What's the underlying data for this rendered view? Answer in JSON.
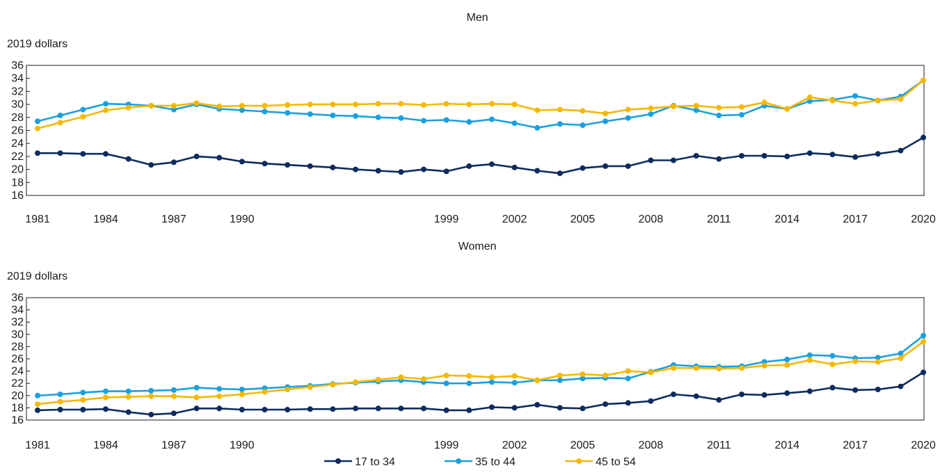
{
  "chart_data": [
    {
      "type": "line",
      "title": "Men",
      "ylabel": "2019 dollars",
      "xlabel": "",
      "ylim": [
        16,
        36
      ],
      "yticks": [
        16,
        18,
        20,
        22,
        24,
        26,
        28,
        30,
        32,
        34,
        36
      ],
      "x": [
        1981,
        1982,
        1983,
        1984,
        1985,
        1986,
        1987,
        1988,
        1989,
        1990,
        1991,
        1992,
        1993,
        1994,
        1995,
        1996,
        1997,
        1998,
        1999,
        2000,
        2001,
        2002,
        2003,
        2004,
        2005,
        2006,
        2007,
        2008,
        2009,
        2010,
        2011,
        2012,
        2013,
        2014,
        2015,
        2016,
        2017,
        2018,
        2019,
        2020
      ],
      "xtick_labels": [
        "1981",
        "1984",
        "1987",
        "1990",
        "1999",
        "2002",
        "2005",
        "2008",
        "2011",
        "2014",
        "2017",
        "2020"
      ],
      "grid": false,
      "series": [
        {
          "name": "17 to 34",
          "color": "#0d2b5c",
          "values": [
            22.5,
            22.5,
            22.4,
            22.4,
            21.6,
            20.7,
            21.1,
            22.0,
            21.8,
            21.2,
            20.9,
            20.7,
            20.5,
            20.3,
            20.0,
            19.8,
            19.6,
            20.0,
            19.7,
            20.5,
            20.8,
            20.3,
            19.8,
            19.4,
            20.2,
            20.5,
            20.5,
            21.4,
            21.4,
            22.1,
            21.6,
            22.1,
            22.1,
            22.0,
            22.5,
            22.3,
            21.9,
            22.4,
            22.9,
            24.9
          ]
        },
        {
          "name": "35 to 44",
          "color": "#1aa0e0",
          "values": [
            27.4,
            28.3,
            29.2,
            30.1,
            30.0,
            29.8,
            29.2,
            30.0,
            29.3,
            29.1,
            28.9,
            28.7,
            28.5,
            28.3,
            28.2,
            28.0,
            27.9,
            27.5,
            27.6,
            27.3,
            27.7,
            27.1,
            26.4,
            27.0,
            26.8,
            27.4,
            27.9,
            28.5,
            29.8,
            29.1,
            28.3,
            28.4,
            29.8,
            29.3,
            30.5,
            30.7,
            31.3,
            30.6,
            31.2,
            33.7
          ]
        },
        {
          "name": "45 to 54",
          "color": "#f5b800",
          "values": [
            26.3,
            27.2,
            28.1,
            29.1,
            29.5,
            29.8,
            29.8,
            30.2,
            29.7,
            29.8,
            29.8,
            29.9,
            30.0,
            30.0,
            30.0,
            30.1,
            30.1,
            29.9,
            30.1,
            30.0,
            30.1,
            30.0,
            29.1,
            29.2,
            29.0,
            28.6,
            29.2,
            29.4,
            29.7,
            29.8,
            29.5,
            29.6,
            30.3,
            29.3,
            31.1,
            30.6,
            30.1,
            30.6,
            30.8,
            33.7
          ]
        }
      ]
    },
    {
      "type": "line",
      "title": "Women",
      "ylabel": "2019 dollars",
      "xlabel": "",
      "ylim": [
        16,
        36
      ],
      "yticks": [
        16,
        18,
        20,
        22,
        24,
        26,
        28,
        30,
        32,
        34,
        36
      ],
      "x": [
        1981,
        1982,
        1983,
        1984,
        1985,
        1986,
        1987,
        1988,
        1989,
        1990,
        1991,
        1992,
        1993,
        1994,
        1995,
        1996,
        1997,
        1998,
        1999,
        2000,
        2001,
        2002,
        2003,
        2004,
        2005,
        2006,
        2007,
        2008,
        2009,
        2010,
        2011,
        2012,
        2013,
        2014,
        2015,
        2016,
        2017,
        2018,
        2019,
        2020
      ],
      "xtick_labels": [
        "1981",
        "1984",
        "1987",
        "1990",
        "1999",
        "2002",
        "2005",
        "2008",
        "2011",
        "2014",
        "2017",
        "2020"
      ],
      "grid": false,
      "series": [
        {
          "name": "17 to 34",
          "color": "#0d2b5c",
          "values": [
            17.6,
            17.7,
            17.7,
            17.8,
            17.3,
            16.9,
            17.1,
            17.9,
            17.9,
            17.7,
            17.7,
            17.7,
            17.8,
            17.8,
            17.9,
            17.9,
            17.9,
            17.9,
            17.6,
            17.6,
            18.1,
            18.0,
            18.5,
            18.0,
            17.9,
            18.6,
            18.8,
            19.1,
            20.2,
            19.9,
            19.3,
            20.2,
            20.1,
            20.4,
            20.7,
            21.3,
            20.9,
            21.0,
            21.5,
            23.8
          ]
        },
        {
          "name": "35 to 44",
          "color": "#1aa0e0",
          "values": [
            20.0,
            20.2,
            20.5,
            20.7,
            20.7,
            20.8,
            20.9,
            21.3,
            21.1,
            21.0,
            21.2,
            21.4,
            21.6,
            21.9,
            22.1,
            22.3,
            22.5,
            22.2,
            22.0,
            22.0,
            22.2,
            22.1,
            22.5,
            22.5,
            22.8,
            22.9,
            22.8,
            23.9,
            25.0,
            24.8,
            24.7,
            24.8,
            25.5,
            25.9,
            26.6,
            26.5,
            26.1,
            26.2,
            26.9,
            29.8
          ]
        },
        {
          "name": "45 to 54",
          "color": "#f5b800",
          "values": [
            18.6,
            19.0,
            19.3,
            19.7,
            19.8,
            19.9,
            19.9,
            19.7,
            19.9,
            20.2,
            20.6,
            21.0,
            21.4,
            21.8,
            22.2,
            22.6,
            23.0,
            22.7,
            23.3,
            23.2,
            23.0,
            23.2,
            22.5,
            23.3,
            23.5,
            23.3,
            24.0,
            23.8,
            24.5,
            24.5,
            24.4,
            24.5,
            24.9,
            25.0,
            25.8,
            25.1,
            25.6,
            25.5,
            26.1,
            28.8
          ]
        }
      ]
    }
  ],
  "legend": {
    "placement": "bottom-center",
    "items": [
      {
        "label": "17 to 34",
        "color": "#0d2b5c"
      },
      {
        "label": "35 to 44",
        "color": "#1aa0e0"
      },
      {
        "label": "45 to 54",
        "color": "#f5b800"
      }
    ]
  }
}
